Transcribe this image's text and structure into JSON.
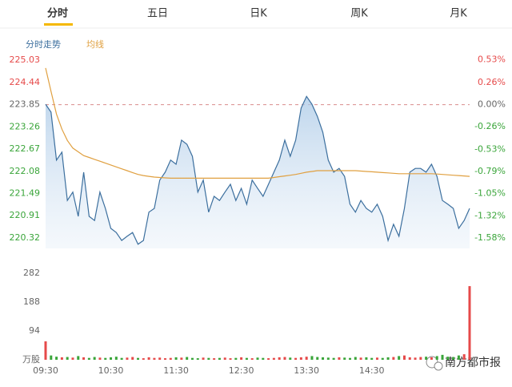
{
  "tabs": [
    "分时",
    "五日",
    "日K",
    "周K",
    "月K"
  ],
  "watermark": "南方都市报",
  "chart_data": [
    {
      "type": "line",
      "x": [
        0,
        5,
        10,
        15,
        20,
        25,
        30,
        35,
        40,
        45,
        50,
        55,
        60,
        65,
        70,
        75,
        80,
        85,
        90,
        95,
        100,
        105,
        110,
        115,
        120,
        125,
        130,
        135,
        140,
        145,
        150,
        155,
        160,
        165,
        170,
        175,
        180,
        185,
        190,
        195,
        200,
        205,
        210,
        215,
        220,
        225,
        230,
        235,
        240,
        245,
        250,
        255,
        260,
        265,
        270,
        275,
        280,
        285,
        290,
        295,
        300,
        305,
        310,
        315,
        320,
        325,
        330,
        335,
        340,
        345,
        350,
        355,
        360,
        365,
        370,
        375,
        380,
        385,
        390
      ],
      "xlim": [
        0,
        390
      ],
      "series": [
        {
          "name": "分时走势",
          "color": "#3c6f9e",
          "values": [
            223.86,
            223.65,
            222.38,
            222.59,
            221.31,
            221.53,
            220.89,
            222.06,
            220.89,
            220.78,
            221.53,
            221.1,
            220.57,
            220.46,
            220.25,
            220.36,
            220.46,
            220.15,
            220.25,
            221.0,
            221.1,
            221.85,
            222.06,
            222.38,
            222.27,
            222.91,
            222.8,
            222.48,
            221.53,
            221.85,
            221.0,
            221.42,
            221.31,
            221.53,
            221.74,
            221.31,
            221.63,
            221.21,
            221.85,
            221.63,
            221.42,
            221.74,
            222.06,
            222.38,
            222.91,
            222.48,
            222.91,
            223.76,
            224.07,
            223.86,
            223.54,
            223.12,
            222.38,
            222.06,
            222.16,
            221.95,
            221.21,
            221.0,
            221.31,
            221.1,
            221.0,
            221.21,
            220.89,
            220.25,
            220.68,
            220.36,
            221.1,
            222.06,
            222.16,
            222.16,
            222.06,
            222.27,
            221.95,
            221.31,
            221.21,
            221.1,
            220.57,
            220.78,
            221.1
          ]
        },
        {
          "name": "均线",
          "color": "#e0a040",
          "values": [
            224.82,
            224.2,
            223.6,
            223.2,
            222.9,
            222.7,
            222.6,
            222.5,
            222.45,
            222.4,
            222.35,
            222.3,
            222.25,
            222.2,
            222.15,
            222.1,
            222.05,
            222.0,
            221.97,
            221.95,
            221.93,
            221.92,
            221.91,
            221.9,
            221.9,
            221.9,
            221.9,
            221.9,
            221.9,
            221.9,
            221.9,
            221.9,
            221.9,
            221.9,
            221.9,
            221.9,
            221.9,
            221.9,
            221.9,
            221.9,
            221.9,
            221.9,
            221.92,
            221.94,
            221.96,
            221.98,
            222.0,
            222.03,
            222.06,
            222.08,
            222.1,
            222.1,
            222.1,
            222.1,
            222.1,
            222.1,
            222.1,
            222.1,
            222.09,
            222.08,
            222.07,
            222.06,
            222.05,
            222.04,
            222.03,
            222.02,
            222.02,
            222.02,
            222.02,
            222.02,
            222.02,
            222.02,
            222.01,
            222.0,
            221.99,
            221.98,
            221.97,
            221.96,
            221.95
          ]
        }
      ],
      "ylim": [
        220.04,
        225.18
      ],
      "yticks": [
        225.03,
        224.44,
        223.85,
        223.26,
        222.67,
        222.08,
        221.49,
        220.91,
        220.32
      ],
      "y2lim": [
        -1.702,
        0.594
      ],
      "y2ticks": [
        {
          "value": 0.53,
          "label": "0.53%"
        },
        {
          "value": 0.26,
          "label": "0.26%"
        },
        {
          "value": 0,
          "label": "0.00%"
        },
        {
          "value": -0.26,
          "label": "-0.26%"
        },
        {
          "value": -0.53,
          "label": "-0.53%"
        },
        {
          "value": -0.79,
          "label": "-0.79%"
        },
        {
          "value": -1.05,
          "label": "-1.05%"
        },
        {
          "value": -1.32,
          "label": "-1.32%"
        },
        {
          "value": -1.58,
          "label": "-1.58%"
        }
      ],
      "prev_close": 223.85,
      "up_color": "#e64a4a",
      "down_color": "#3aa53a"
    },
    {
      "type": "bar",
      "x": [
        0,
        5,
        10,
        15,
        20,
        25,
        30,
        35,
        40,
        45,
        50,
        55,
        60,
        65,
        70,
        75,
        80,
        85,
        90,
        95,
        100,
        105,
        110,
        115,
        120,
        125,
        130,
        135,
        140,
        145,
        150,
        155,
        160,
        165,
        170,
        175,
        180,
        185,
        190,
        195,
        200,
        205,
        210,
        215,
        220,
        225,
        230,
        235,
        240,
        245,
        250,
        255,
        260,
        265,
        270,
        275,
        280,
        285,
        290,
        295,
        300,
        305,
        310,
        315,
        320,
        325,
        330,
        335,
        340,
        345,
        350,
        355,
        360,
        365,
        370,
        375,
        380,
        385,
        390
      ],
      "xlim": [
        0,
        390
      ],
      "values": [
        60,
        14,
        10,
        8,
        9,
        7,
        12,
        8,
        6,
        9,
        7,
        6,
        8,
        10,
        6,
        7,
        9,
        6,
        5,
        8,
        6,
        7,
        5,
        6,
        8,
        7,
        9,
        6,
        5,
        7,
        6,
        5,
        6,
        7,
        5,
        6,
        8,
        6,
        5,
        7,
        6,
        5,
        6,
        8,
        9,
        7,
        6,
        8,
        10,
        12,
        9,
        8,
        7,
        6,
        8,
        7,
        6,
        9,
        7,
        8,
        6,
        7,
        6,
        8,
        9,
        12,
        14,
        8,
        7,
        9,
        10,
        8,
        12,
        16,
        10,
        9,
        14,
        18,
        240
      ],
      "ylim": [
        0,
        282
      ],
      "yticks": [
        {
          "value": 0,
          "label": "万股"
        },
        94,
        188,
        282
      ],
      "xticks": [
        {
          "value": 0,
          "label": "09:30"
        },
        {
          "value": 60,
          "label": "10:30"
        },
        {
          "value": 120,
          "label": "11:30"
        },
        {
          "value": 180,
          "label": "12:30"
        },
        {
          "value": 240,
          "label": "13:30"
        },
        {
          "value": 300,
          "label": "14:30"
        }
      ]
    }
  ]
}
